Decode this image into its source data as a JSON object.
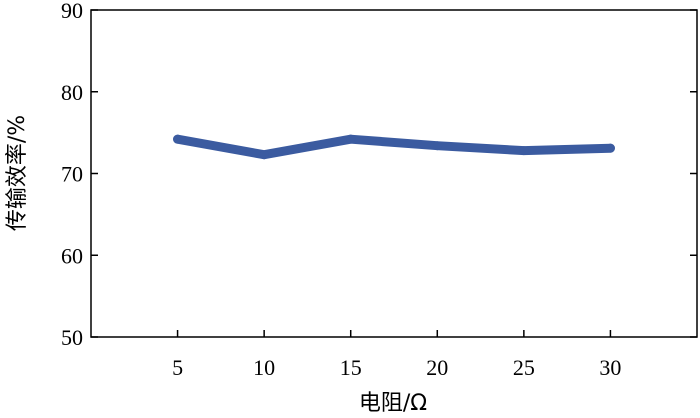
{
  "chart_data": {
    "type": "line",
    "x": [
      5,
      10,
      15,
      20,
      25,
      30
    ],
    "series": [
      {
        "values": [
          74.2,
          72.3,
          74.2,
          73.4,
          72.8,
          73.1
        ],
        "color": "#3b5ba0"
      }
    ],
    "xlabel": "电阻/Ω",
    "ylabel": "传输效率/%",
    "xlim": [
      0,
      35
    ],
    "ylim": [
      50,
      90
    ],
    "xticks": [
      5,
      10,
      15,
      20,
      25,
      30
    ],
    "yticks": [
      50,
      60,
      70,
      80,
      90
    ],
    "grid": false,
    "legend": "none"
  }
}
